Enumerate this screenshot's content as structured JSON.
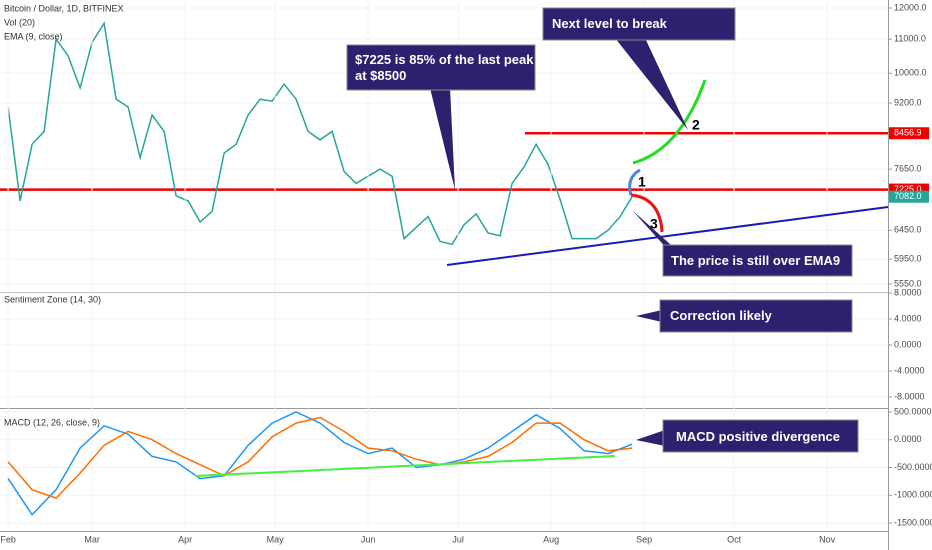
{
  "chart_data": [
    {
      "type": "line",
      "title": "Bitcoin / Dollar, 1D, BITFINEX",
      "indicators": [
        "Vol (20)",
        "EMA (9, close)"
      ],
      "log_scale": true,
      "xlim": [
        29.3,
        325.3
      ],
      "ylim": [
        5427,
        12271
      ],
      "yticks": [
        {
          "value": 12000,
          "label": "12000.0"
        },
        {
          "value": 11000,
          "label": "11000.0"
        },
        {
          "value": 10000,
          "label": "10000.0"
        },
        {
          "value": 9200,
          "label": "9200.0"
        },
        {
          "value": 7650,
          "label": "7650.0"
        },
        {
          "value": 6450,
          "label": "6450.0"
        },
        {
          "value": 5950,
          "label": "5950.0"
        },
        {
          "value": 5550,
          "label": "5550.0"
        }
      ],
      "price_labels": [
        {
          "value": 8456.9,
          "label": "8456.9",
          "color": "#f20000"
        },
        {
          "value": 7225,
          "label": "7225.0",
          "color": "#f20000"
        },
        {
          "value": 7082,
          "label": "7082.0",
          "color": "#26a69a"
        }
      ],
      "x": [
        32,
        36,
        40,
        44,
        48,
        52,
        56,
        60,
        64,
        68,
        72,
        76,
        80,
        84,
        88,
        92,
        96,
        100,
        104,
        108,
        112,
        116,
        120,
        124,
        128,
        132,
        136,
        140,
        144,
        148,
        152,
        156,
        160,
        164,
        168,
        172,
        176,
        180,
        184,
        188,
        192,
        196,
        200,
        204,
        208,
        212,
        216,
        220,
        224,
        228,
        232,
        236,
        240
      ],
      "series": [
        {
          "color": "#26a69a",
          "values": [
            9100,
            7000,
            8200,
            8500,
            11000,
            10500,
            9600,
            10900,
            11500,
            9300,
            9100,
            7900,
            8900,
            8500,
            7100,
            7000,
            6600,
            6800,
            8000,
            8200,
            8900,
            9300,
            9250,
            9700,
            9300,
            8500,
            8300,
            8500,
            7600,
            7350,
            7500,
            7650,
            7500,
            6300,
            6500,
            6700,
            6250,
            6200,
            6550,
            6750,
            6400,
            6350,
            7350,
            7700,
            8200,
            7750,
            7030,
            6300,
            6300,
            6300,
            6450,
            6700,
            7080
          ]
        }
      ]
    },
    {
      "type": "line",
      "title": "Sentiment Zone (14, 30)",
      "xlim": [
        29.3,
        325.3
      ],
      "ylim": [
        -9.7,
        8
      ],
      "yticks": [
        {
          "value": 8,
          "label": "8.0000"
        },
        {
          "value": 4,
          "label": "4.0000"
        },
        {
          "value": 0,
          "label": "0.0000"
        },
        {
          "value": -4,
          "label": "-4.0000"
        },
        {
          "value": -8,
          "label": "-8.0000"
        }
      ]
    },
    {
      "type": "line",
      "title": "MACD (12, 26, close, 9)",
      "xlim": [
        29.3,
        325.3
      ],
      "ylim": [
        -1643,
        571
      ],
      "yticks": [
        {
          "value": 500,
          "label": "500.0000"
        },
        {
          "value": 0,
          "label": "0.0000"
        },
        {
          "value": -500,
          "label": "-500.0000"
        },
        {
          "value": -1000,
          "label": "-1000.0000"
        },
        {
          "value": -1500,
          "label": "-1500.0000"
        }
      ],
      "xticks": [
        {
          "value": 32,
          "label": "Feb"
        },
        {
          "value": 60,
          "label": "Mar"
        },
        {
          "value": 91,
          "label": "Apr"
        },
        {
          "value": 121,
          "label": "May"
        },
        {
          "value": 152,
          "label": "Jun"
        },
        {
          "value": 182,
          "label": "Jul"
        },
        {
          "value": 213,
          "label": "Aug"
        },
        {
          "value": 244,
          "label": "Sep"
        },
        {
          "value": 274,
          "label": "Oct"
        },
        {
          "value": 305,
          "label": "Nov"
        }
      ],
      "x": [
        32,
        40,
        48,
        56,
        64,
        72,
        80,
        88,
        96,
        104,
        112,
        120,
        128,
        136,
        144,
        152,
        160,
        168,
        176,
        184,
        192,
        200,
        208,
        216,
        224,
        232,
        240
      ],
      "series": [
        {
          "color": "#2196f3",
          "values": [
            -700,
            -1350,
            -900,
            -150,
            250,
            100,
            -300,
            -400,
            -700,
            -650,
            -100,
            300,
            500,
            300,
            -50,
            -250,
            -150,
            -500,
            -450,
            -350,
            -150,
            150,
            450,
            200,
            -200,
            -250,
            -80
          ]
        },
        {
          "color": "#ff6d00",
          "values": [
            -400,
            -900,
            -1050,
            -600,
            -100,
            150,
            0,
            -250,
            -450,
            -650,
            -400,
            50,
            300,
            400,
            150,
            -150,
            -200,
            -350,
            -450,
            -400,
            -300,
            -50,
            300,
            300,
            0,
            -200,
            -150
          ]
        }
      ]
    }
  ],
  "annotations": [
    {
      "lines": [
        "$7225 is 85% of the last peak",
        "at $8500"
      ]
    },
    {
      "lines": [
        "Next level to break"
      ]
    },
    {
      "lines": [
        "The price is still over EMA9"
      ]
    },
    {
      "lines": [
        "Correction likely"
      ]
    },
    {
      "lines": [
        "MACD positive divergence"
      ]
    }
  ],
  "wave_labels": [
    "1",
    "2",
    "3"
  ]
}
